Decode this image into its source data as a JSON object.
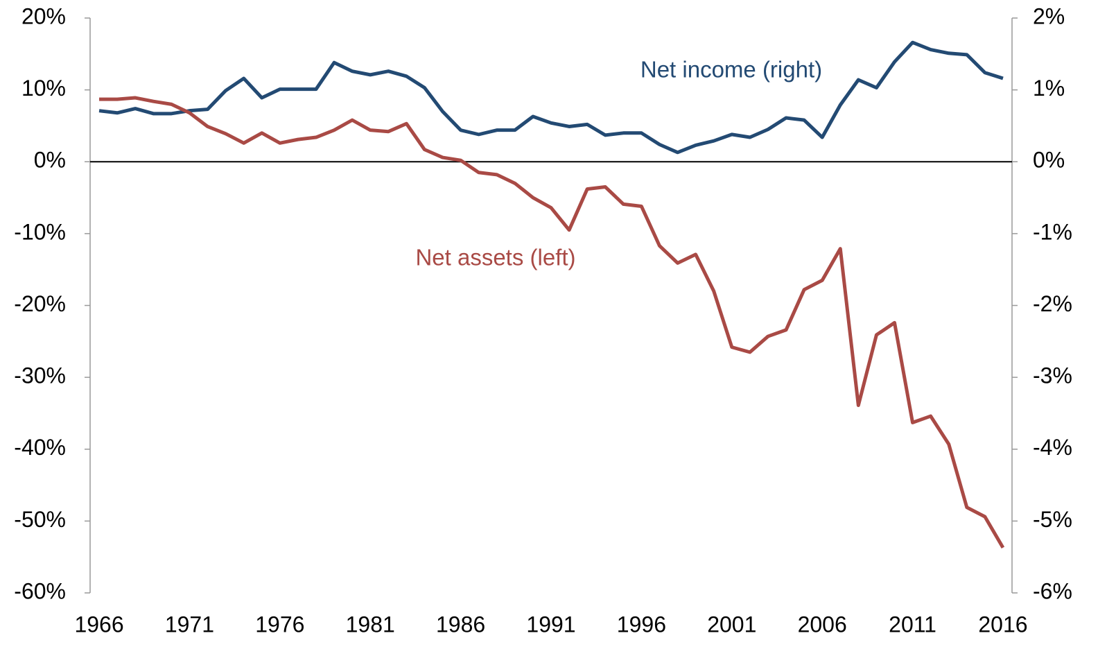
{
  "chart_data": {
    "type": "line",
    "x": [
      1966,
      1967,
      1968,
      1969,
      1970,
      1971,
      1972,
      1973,
      1974,
      1975,
      1976,
      1977,
      1978,
      1979,
      1980,
      1981,
      1982,
      1983,
      1984,
      1985,
      1986,
      1987,
      1988,
      1989,
      1990,
      1991,
      1992,
      1993,
      1994,
      1995,
      1996,
      1997,
      1998,
      1999,
      2000,
      2001,
      2002,
      2003,
      2004,
      2005,
      2006,
      2007,
      2008,
      2009,
      2010,
      2011,
      2012,
      2013,
      2014,
      2015,
      2016
    ],
    "xlim": [
      1965.5,
      2016.5
    ],
    "xticks": [
      1966,
      1971,
      1976,
      1981,
      1986,
      1991,
      1996,
      2001,
      2006,
      2011,
      2016
    ],
    "ylim": [
      -60,
      20
    ],
    "yticks": [
      {
        "value": 20,
        "label": "20%"
      },
      {
        "value": 10,
        "label": "10%"
      },
      {
        "value": 0,
        "label": "0%"
      },
      {
        "value": -10,
        "label": "-10%"
      },
      {
        "value": -20,
        "label": "-20%"
      },
      {
        "value": -30,
        "label": "-30%"
      },
      {
        "value": -40,
        "label": "-40%"
      },
      {
        "value": -50,
        "label": "-50%"
      },
      {
        "value": -60,
        "label": "-60%"
      }
    ],
    "y2lim": [
      -6,
      2
    ],
    "y2ticks": [
      {
        "value": 2,
        "label": "2%"
      },
      {
        "value": 1,
        "label": "1%"
      },
      {
        "value": 0,
        "label": "0%"
      },
      {
        "value": -1,
        "label": "-1%"
      },
      {
        "value": -2,
        "label": "-2%"
      },
      {
        "value": -3,
        "label": "-3%"
      },
      {
        "value": -4,
        "label": "-4%"
      },
      {
        "value": -5,
        "label": "-5%"
      },
      {
        "value": -6,
        "label": "-6%"
      }
    ],
    "series": [
      {
        "name": "Net income (right)",
        "color": "#234a73",
        "axis": "y2",
        "values": [
          0.71,
          0.68,
          0.74,
          0.67,
          0.67,
          0.71,
          0.73,
          0.99,
          1.16,
          0.89,
          1.01,
          1.01,
          1.01,
          1.38,
          1.26,
          1.21,
          1.26,
          1.19,
          1.03,
          0.7,
          0.44,
          0.38,
          0.44,
          0.44,
          0.63,
          0.54,
          0.49,
          0.52,
          0.37,
          0.4,
          0.4,
          0.24,
          0.13,
          0.23,
          0.29,
          0.38,
          0.34,
          0.45,
          0.61,
          0.58,
          0.34,
          0.79,
          1.14,
          1.03,
          1.39,
          1.66,
          1.56,
          1.51,
          1.49,
          1.24,
          1.16
        ]
      },
      {
        "name": "Net assets (left)",
        "color": "#a94a45",
        "axis": "y",
        "values": [
          8.7,
          8.7,
          8.9,
          8.4,
          8.0,
          6.8,
          4.9,
          3.9,
          2.6,
          4.0,
          2.6,
          3.1,
          3.4,
          4.4,
          5.8,
          4.4,
          4.2,
          5.3,
          1.7,
          0.6,
          0.2,
          -1.5,
          -1.8,
          -3.0,
          -5.0,
          -6.4,
          -9.5,
          -3.8,
          -3.5,
          -5.9,
          -6.2,
          -11.7,
          -14.1,
          -12.9,
          -18.0,
          -25.8,
          -26.5,
          -24.3,
          -23.4,
          -17.8,
          -16.5,
          -12.1,
          -33.9,
          -24.1,
          -22.4,
          -36.3,
          -35.4,
          -39.3,
          -48.1,
          -49.4,
          -53.7
        ]
      }
    ]
  }
}
